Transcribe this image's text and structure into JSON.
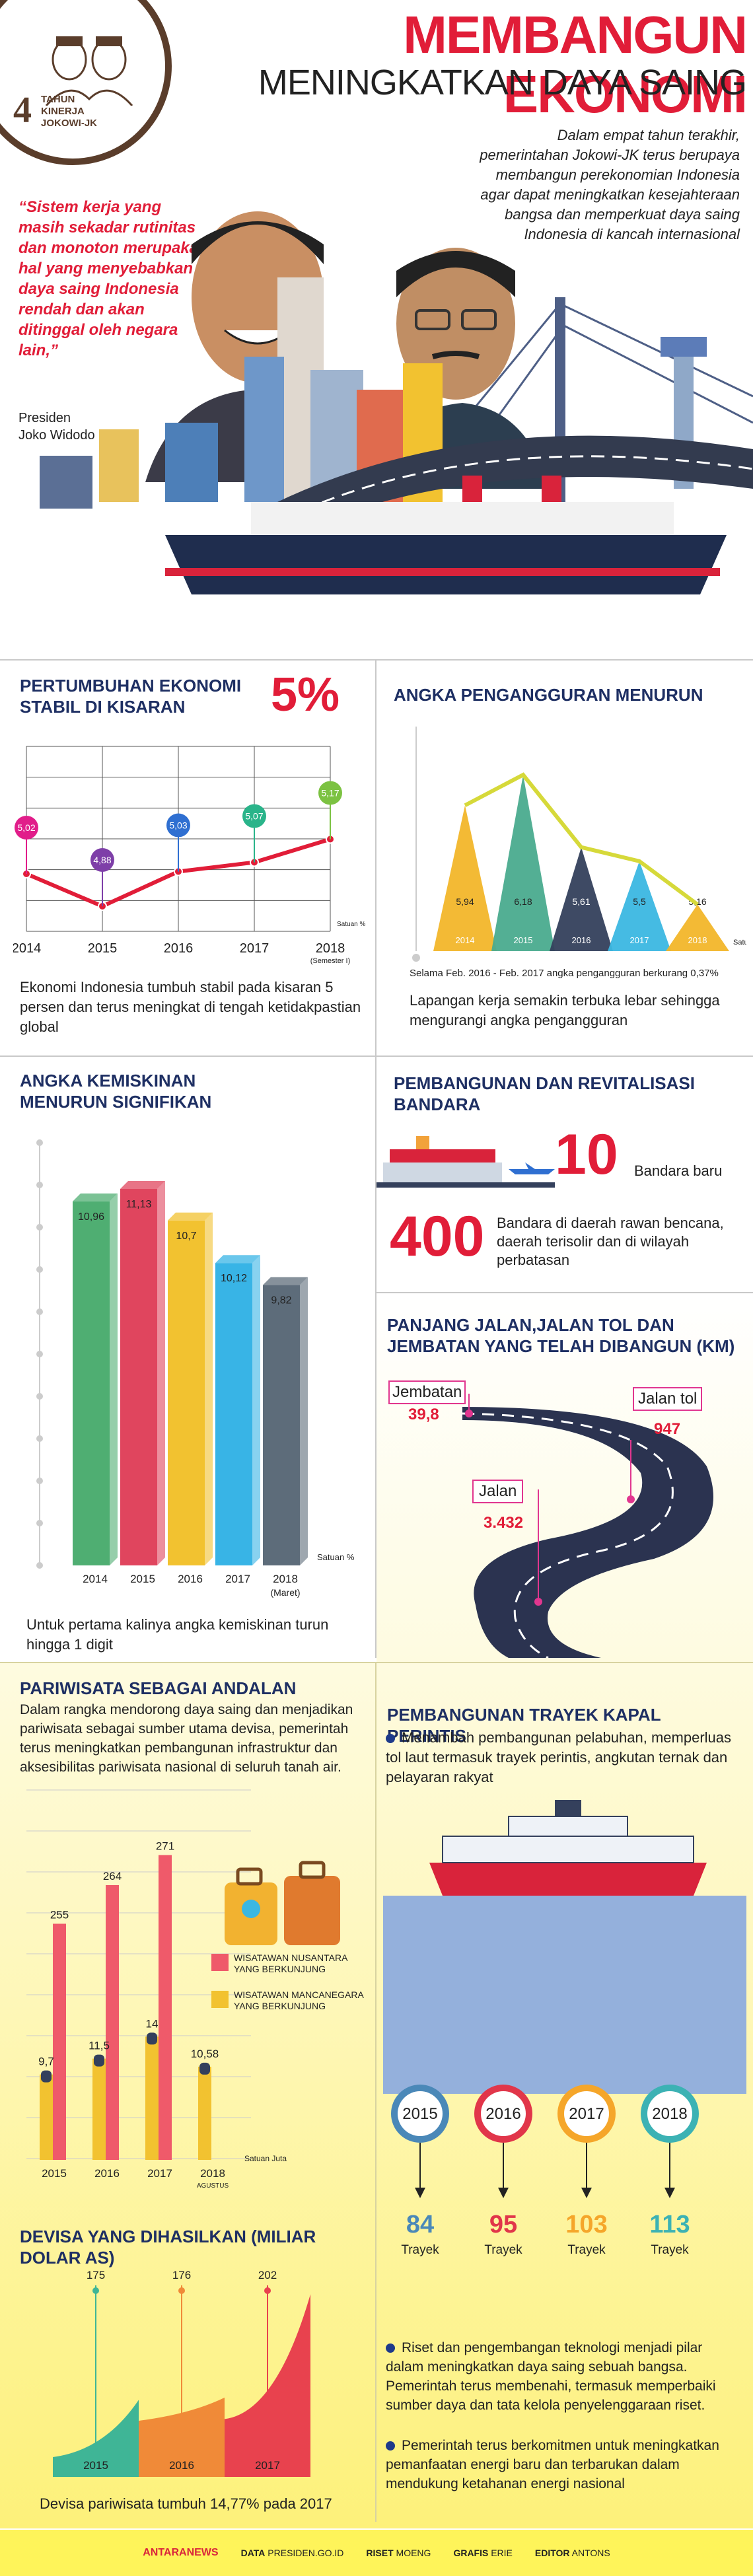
{
  "header": {
    "title_line1": "MEMBANGUN EKONOMI",
    "title_line2": "MENINGKATKAN DAYA SAING",
    "logo_number": "4",
    "logo_line1": "TAHUN",
    "logo_line2": "KINERJA",
    "logo_line3": "JOKOWI-JK",
    "intro": "Dalam empat tahun terakhir, pemerintahan Jokowi-JK terus berupaya membangun perekonomian Indonesia agar dapat meningkatkan kesejahteraan bangsa dan memperkuat daya saing Indonesia di kancah internasional",
    "quote": "“Sistem kerja yang masih sekadar rutinitas dan monoton merupakan hal yang menyebabkan daya saing Indonesia rendah dan akan ditinggal oleh negara lain,”",
    "quote_author_role": "Presiden",
    "quote_author_name": "Joko Widodo"
  },
  "growth": {
    "title": "PERTUMBUHAN EKONOMI STABIL DI KISARAN",
    "big_value": "5%",
    "caption": "Ekonomi Indonesia tumbuh stabil pada kisaran 5 persen dan terus meningkat di tengah ketidakpastian global",
    "chart_data": {
      "type": "line",
      "x": [
        "2014",
        "2015",
        "2016",
        "2017",
        "2018"
      ],
      "x_sub": [
        "",
        "",
        "",
        "",
        "(Semester I)"
      ],
      "values": [
        5.02,
        4.88,
        5.03,
        5.07,
        5.17
      ],
      "labels": [
        "5,02",
        "4,88",
        "5,03",
        "5,07",
        "5,17"
      ],
      "unit": "Satuan %",
      "point_colors": [
        "#e11d8a",
        "#7e3fa8",
        "#2f6fd1",
        "#2ab48a",
        "#7cc242"
      ]
    }
  },
  "unemployment": {
    "title": "ANGKA PENGANGGURAN MENURUN",
    "note": "Selama Feb. 2016 - Feb. 2017 angka pengangguran berkurang 0,37%",
    "caption": "Lapangan kerja semakin terbuka lebar sehingga mengurangi angka pengangguran",
    "chart_data": {
      "type": "area",
      "x": [
        "2014",
        "2015",
        "2016",
        "2017",
        "2018"
      ],
      "values": [
        5.94,
        6.18,
        5.61,
        5.5,
        5.16
      ],
      "labels": [
        "5,94",
        "6,18",
        "5,61",
        "5,5",
        "5,16"
      ],
      "unit": "Satuan %",
      "colors": [
        "#f2b62a",
        "#4aab8e",
        "#34405c",
        "#3bb7e2",
        "#f2b62a"
      ]
    }
  },
  "poverty": {
    "title": "ANGKA KEMISKINAN MENURUN SIGNIFIKAN",
    "caption": "Untuk pertama kalinya angka kemiskinan turun hingga 1 digit",
    "chart_data": {
      "type": "bar",
      "categories": [
        "2014",
        "2015",
        "2016",
        "2017",
        "2018"
      ],
      "category_sub": [
        "",
        "",
        "",
        "",
        "(Maret)"
      ],
      "values": [
        10.96,
        11.13,
        10.7,
        10.12,
        9.82
      ],
      "labels": [
        "10,96",
        "11,13",
        "10,7",
        "10,12",
        "9,82"
      ],
      "unit": "Satuan %",
      "colors": [
        "#4fae72",
        "#e0455e",
        "#f2c230",
        "#38b4e6",
        "#5d6c7a"
      ]
    }
  },
  "airports": {
    "title": "PEMBANGUNAN DAN REVITALISASI BANDARA",
    "new_count": "10",
    "new_label": "Bandara baru",
    "remote_count": "400",
    "remote_label": "Bandara di daerah rawan bencana, daerah terisolir dan di wilayah perbatasan"
  },
  "roads": {
    "title": "PANJANG JALAN,JALAN TOL DAN JEMBATAN YANG TELAH DIBANGUN (KM)",
    "bridge_label": "Jembatan",
    "bridge_value": "39,8",
    "toll_label": "Jalan tol",
    "toll_value": "947",
    "road_label": "Jalan",
    "road_value": "3.432"
  },
  "tourism": {
    "title": "PARIWISATA SEBAGAI ANDALAN",
    "intro": "Dalam rangka mendorong daya saing dan menjadikan pariwisata sebagai sumber utama devisa, pemerintah terus meningkatkan pembangunan infrastruktur dan aksesibilitas pariwisata nasional di seluruh tanah air.",
    "legend_domestic": "WISATAWAN NUSANTARA YANG BERKUNJUNG",
    "legend_foreign": "WISATAWAN MANCANEGARA YANG BERKUNJUNG",
    "chart_data": {
      "type": "bar",
      "categories": [
        "2015",
        "2016",
        "2017",
        "2018"
      ],
      "category_sub": [
        "",
        "",
        "",
        "AGUSTUS"
      ],
      "unit": "Satuan Juta",
      "series": [
        {
          "name": "WISATAWAN MANCANEGARA YANG BERKUNJUNG",
          "values": [
            9.7,
            11.5,
            14,
            10.58
          ],
          "labels": [
            "9,7",
            "11,5",
            "14",
            "10,58"
          ],
          "color": "#f2c230"
        },
        {
          "name": "WISATAWAN NUSANTARA YANG BERKUNJUNG",
          "values": [
            255,
            264,
            271,
            null
          ],
          "labels": [
            "255",
            "264",
            "271",
            ""
          ],
          "color": "#ef5a6a"
        }
      ]
    }
  },
  "forex": {
    "title": "DEVISA YANG DIHASILKAN (MILIAR DOLAR AS)",
    "caption": "Devisa pariwisata tumbuh 14,77% pada 2017",
    "chart_data": {
      "type": "area",
      "categories": [
        "2015",
        "2016",
        "2017"
      ],
      "values": [
        175,
        176,
        202
      ],
      "labels": [
        "175",
        "176",
        "202"
      ],
      "colors": [
        "#3fb596",
        "#f08a38",
        "#e8424e"
      ]
    }
  },
  "shipping": {
    "title": "PEMBANGUNAN TRAYEK KAPAL PERINTIS",
    "bullet1": "Menambah pembangunan pelabuhan, memperluas tol laut termasuk trayek perintis, angkutan ternak dan pelayaran rakyat",
    "bullet2": "Riset dan pengembangan teknologi menjadi pilar dalam meningkatkan daya saing sebuah bangsa. Pemerintah terus membenahi, termasuk memperbaiki sumber daya dan tata kelola penyelenggaraan riset.",
    "bullet3": "Pemerintah terus berkomitmen untuk meningkatkan pemanfaatan energi baru dan terbarukan dalam mendukung ketahanan energi nasional",
    "routes_unit": "Trayek",
    "chart_data": {
      "type": "bar",
      "categories": [
        "2015",
        "2016",
        "2017",
        "2018"
      ],
      "values": [
        84,
        95,
        103,
        113
      ],
      "labels": [
        "84",
        "95",
        "103",
        "113"
      ],
      "colors": [
        "#4a88b8",
        "#e1364a",
        "#f5a62a",
        "#3cb2b4"
      ]
    }
  },
  "footer": {
    "brand": "ANTARANEWS",
    "data_label": "DATA",
    "data_value": "PRESIDEN.GO.ID",
    "research_label": "RISET",
    "research_value": "MOENG",
    "graphic_label": "GRAFIS",
    "graphic_value": "ERIE",
    "editor_label": "EDITOR",
    "editor_value": "ANTONS"
  }
}
